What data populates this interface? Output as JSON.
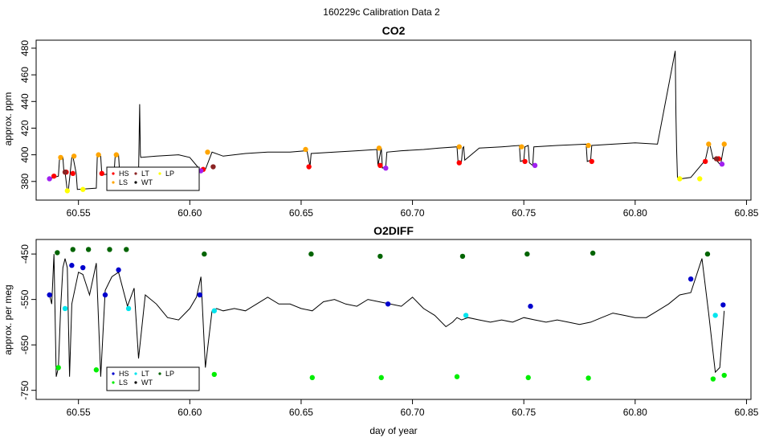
{
  "page_title": "160229c   Calibration Data 2",
  "chart_data": [
    {
      "type": "line",
      "title": "CO2",
      "xlabel": "",
      "ylabel": "approx. ppm",
      "xlim": [
        60.531,
        60.852
      ],
      "ylim": [
        366,
        486
      ],
      "xticks": [
        {
          "v": 60.55,
          "label": "60.55"
        },
        {
          "v": 60.6,
          "label": "60.60"
        },
        {
          "v": 60.65,
          "label": "60.65"
        },
        {
          "v": 60.7,
          "label": "60.70"
        },
        {
          "v": 60.75,
          "label": "60.75"
        },
        {
          "v": 60.8,
          "label": "60.80"
        },
        {
          "v": 60.85,
          "label": "60.85"
        }
      ],
      "yticks": [
        {
          "v": 380,
          "label": "380"
        },
        {
          "v": 400,
          "label": "400"
        },
        {
          "v": 420,
          "label": "420"
        },
        {
          "v": 440,
          "label": "440"
        },
        {
          "v": 460,
          "label": "460"
        },
        {
          "v": 480,
          "label": "480"
        }
      ],
      "legend": {
        "placement": "bottom-left",
        "entries": [
          {
            "label": "HS",
            "color": "#ff0000"
          },
          {
            "label": "LT",
            "color": "#8b2323"
          },
          {
            "label": "LP",
            "color": "#ffff00"
          },
          {
            "label": "LS",
            "color": "#ffa500"
          },
          {
            "label": "WT",
            "color": "#000000"
          }
        ]
      },
      "series": [
        {
          "color": "#000000",
          "x": [
            60.537,
            60.539,
            60.541,
            60.5415,
            60.543,
            60.5435,
            60.544,
            60.545,
            60.5455,
            60.547,
            60.5475,
            60.549,
            60.5495,
            60.558,
            60.5585,
            60.56,
            60.5605,
            60.566,
            60.5665,
            60.568,
            60.5685,
            60.577,
            60.5775,
            60.5778,
            60.578,
            60.585,
            60.595,
            60.6,
            60.605,
            60.607,
            60.61,
            60.615,
            60.625,
            60.635,
            60.645,
            60.652,
            60.6525,
            60.654,
            60.6545,
            60.665,
            60.675,
            60.684,
            60.6845,
            60.686,
            60.6865,
            60.688,
            60.6885,
            60.695,
            60.705,
            60.712,
            60.72,
            60.7205,
            60.722,
            60.7225,
            60.723,
            60.7235,
            60.73,
            60.74,
            60.748,
            60.7485,
            60.75,
            60.7505,
            60.752,
            60.7525,
            60.754,
            60.7545,
            60.765,
            60.778,
            60.7785,
            60.78,
            60.7805,
            60.79,
            60.8,
            60.81,
            60.818,
            60.8183,
            60.8186,
            60.819,
            60.82,
            60.8205,
            60.825,
            60.831,
            60.8315,
            60.833,
            60.8335,
            60.835,
            60.836,
            60.8365,
            60.838,
            60.8385,
            60.84
          ],
          "y": [
            382,
            383,
            384,
            397,
            398,
            386,
            387,
            373,
            374,
            398,
            399,
            386,
            374,
            375,
            400,
            399,
            385,
            386,
            399,
            400,
            386,
            385,
            438,
            400,
            398,
            399,
            400,
            398,
            388,
            389,
            402,
            399,
            401,
            402,
            402,
            403,
            404,
            391,
            401,
            402,
            403,
            404,
            392,
            405,
            390,
            391,
            402,
            403,
            404,
            405,
            406,
            394,
            395,
            405,
            406,
            396,
            405,
            406,
            407,
            395,
            396,
            406,
            407,
            394,
            392,
            406,
            407,
            408,
            395,
            396,
            407,
            408,
            409,
            408,
            478,
            430,
            405,
            383,
            382,
            382,
            383,
            395,
            396,
            407,
            408,
            397,
            398,
            396,
            393,
            394,
            408
          ]
        },
        {
          "name": "HS",
          "color": "#ff0000",
          "x": [
            60.539,
            60.5445,
            60.5475,
            60.5605,
            60.5685,
            60.606,
            60.6535,
            60.6855,
            60.721,
            60.7505,
            60.7805,
            60.8315,
            60.8375
          ],
          "y": [
            384,
            387,
            386,
            386,
            386,
            389,
            391,
            392,
            394,
            395,
            395,
            395,
            397
          ]
        },
        {
          "name": "LS",
          "color": "#ffa500",
          "x": [
            60.542,
            60.548,
            60.559,
            60.567,
            60.608,
            60.652,
            60.685,
            60.721,
            60.749,
            60.779,
            60.833,
            60.84
          ],
          "y": [
            398,
            399,
            400,
            400,
            402,
            404,
            405,
            406,
            406,
            407,
            408,
            408
          ]
        },
        {
          "name": "LT",
          "color": "#8b2323",
          "x": [
            60.544,
            60.6105,
            60.8365
          ],
          "y": [
            387,
            391,
            397
          ]
        },
        {
          "name": "LP",
          "color": "#ffff00",
          "x": [
            60.545,
            60.552,
            60.82,
            60.829
          ],
          "y": [
            373,
            374,
            382,
            382
          ]
        },
        {
          "name": "WT",
          "color": "#a020f0",
          "x": [
            60.537,
            60.605,
            60.688,
            60.755,
            60.839
          ],
          "y": [
            382,
            388,
            390,
            392,
            393
          ]
        }
      ]
    },
    {
      "type": "line",
      "title": "O2DIFF",
      "xlabel": "day of year",
      "ylabel": "approx. per meg",
      "xlim": [
        60.531,
        60.852
      ],
      "ylim": [
        -770,
        -418
      ],
      "xticks": [
        {
          "v": 60.55,
          "label": "60.55"
        },
        {
          "v": 60.6,
          "label": "60.60"
        },
        {
          "v": 60.65,
          "label": "60.65"
        },
        {
          "v": 60.7,
          "label": "60.70"
        },
        {
          "v": 60.75,
          "label": "60.75"
        },
        {
          "v": 60.8,
          "label": "60.80"
        },
        {
          "v": 60.85,
          "label": "60.85"
        }
      ],
      "yticks": [
        {
          "v": -450,
          "label": "-450"
        },
        {
          "v": -550,
          "label": "-550"
        },
        {
          "v": -650,
          "label": "-650"
        },
        {
          "v": -750,
          "label": "-750"
        }
      ],
      "legend": {
        "placement": "bottom-left",
        "entries": [
          {
            "label": "HS",
            "color": "#0000cd"
          },
          {
            "label": "LT",
            "color": "#00e5ee"
          },
          {
            "label": "LP",
            "color": "#006400"
          },
          {
            "label": "LS",
            "color": "#00ee00"
          },
          {
            "label": "WT",
            "color": "#000000"
          }
        ]
      },
      "series": [
        {
          "color": "#000000",
          "x": [
            60.537,
            60.538,
            60.539,
            60.54,
            60.541,
            60.542,
            60.543,
            60.544,
            60.545,
            60.546,
            60.547,
            60.55,
            60.552,
            60.555,
            60.558,
            60.56,
            60.562,
            60.565,
            60.568,
            60.572,
            60.575,
            60.577,
            60.58,
            60.585,
            60.59,
            60.595,
            60.6,
            60.603,
            60.605,
            60.607,
            60.61,
            60.612,
            60.615,
            60.62,
            60.625,
            60.63,
            60.635,
            60.64,
            60.645,
            60.65,
            60.655,
            60.66,
            60.665,
            60.67,
            60.675,
            60.68,
            60.685,
            60.69,
            60.695,
            60.7,
            60.705,
            60.71,
            60.715,
            60.718,
            60.72,
            60.722,
            60.725,
            60.73,
            60.735,
            60.74,
            60.745,
            60.75,
            60.755,
            60.76,
            60.765,
            60.77,
            60.775,
            60.78,
            60.785,
            60.79,
            60.795,
            60.8,
            60.805,
            60.81,
            60.815,
            60.82,
            60.825,
            60.83,
            60.833,
            60.836,
            60.838,
            60.84
          ],
          "y": [
            -540,
            -560,
            -450,
            -720,
            -700,
            -570,
            -480,
            -460,
            -480,
            -720,
            -560,
            -490,
            -495,
            -540,
            -470,
            -720,
            -530,
            -500,
            -490,
            -565,
            -525,
            -680,
            -540,
            -560,
            -590,
            -595,
            -570,
            -545,
            -500,
            -700,
            -575,
            -570,
            -575,
            -570,
            -575,
            -560,
            -545,
            -560,
            -560,
            -570,
            -575,
            -555,
            -550,
            -560,
            -565,
            -550,
            -555,
            -560,
            -565,
            -545,
            -570,
            -585,
            -610,
            -600,
            -590,
            -595,
            -590,
            -595,
            -600,
            -595,
            -600,
            -590,
            -595,
            -600,
            -595,
            -600,
            -605,
            -600,
            -590,
            -580,
            -585,
            -590,
            -590,
            -575,
            -560,
            -540,
            -535,
            -460,
            -580,
            -710,
            -700,
            -575
          ]
        },
        {
          "name": "HS",
          "color": "#0000cd",
          "x": [
            60.537,
            60.547,
            60.552,
            60.562,
            60.568,
            60.6045,
            60.689,
            60.753,
            60.825,
            60.8395
          ],
          "y": [
            -540,
            -475,
            -480,
            -540,
            -485,
            -540,
            -560,
            -565,
            -505,
            -562
          ]
        },
        {
          "name": "LS",
          "color": "#00ee00",
          "x": [
            60.541,
            60.558,
            60.5665,
            60.611,
            60.655,
            60.686,
            60.72,
            60.752,
            60.779,
            60.835,
            60.84
          ],
          "y": [
            -700,
            -705,
            -710,
            -715,
            -722,
            -722,
            -720,
            -722,
            -723,
            -725,
            -717
          ]
        },
        {
          "name": "LT",
          "color": "#00e5ee",
          "x": [
            60.544,
            60.5725,
            60.611,
            60.724,
            60.836
          ],
          "y": [
            -570,
            -570,
            -575,
            -585,
            -585
          ]
        },
        {
          "name": "LP",
          "color": "#006400",
          "x": [
            60.5405,
            60.5475,
            60.5545,
            60.564,
            60.5715,
            60.6065,
            60.6545,
            60.6855,
            60.7225,
            60.7515,
            60.781,
            60.8325
          ],
          "y": [
            -447,
            -440,
            -440,
            -440,
            -440,
            -450,
            -450,
            -455,
            -455,
            -450,
            -448,
            -450
          ]
        }
      ]
    }
  ]
}
